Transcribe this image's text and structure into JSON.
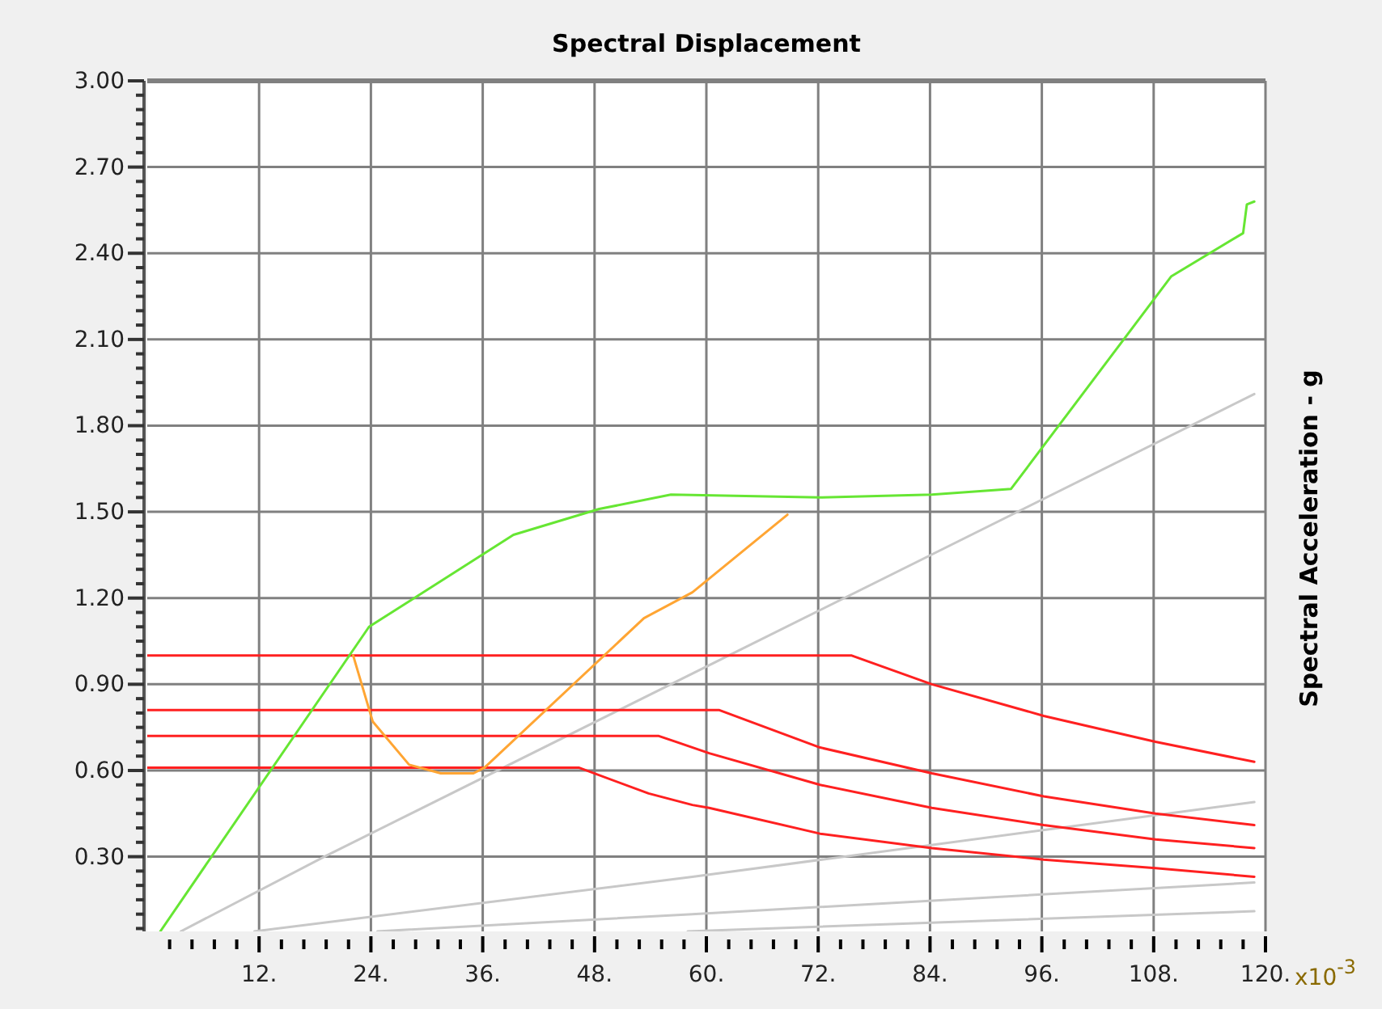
{
  "chart_data": {
    "type": "line",
    "title": "Spectral Displacement",
    "xlabel": "x10$^{-3}$",
    "ylabel": "Spectral Acceleration - g",
    "xlim": [
      0,
      120
    ],
    "ylim": [
      0.04,
      3.0
    ],
    "xticks": [
      {
        "value": 2.4,
        "label": null
      },
      {
        "value": 4.8,
        "label": null
      },
      {
        "value": 7.2,
        "label": null
      },
      {
        "value": 9.6,
        "label": null
      },
      {
        "value": 12,
        "label": "12."
      },
      {
        "value": 14.4,
        "label": null
      },
      {
        "value": 16.8,
        "label": null
      },
      {
        "value": 19.2,
        "label": null
      },
      {
        "value": 21.6,
        "label": null
      },
      {
        "value": 24,
        "label": "24."
      },
      {
        "value": 26.4,
        "label": null
      },
      {
        "value": 28.8,
        "label": null
      },
      {
        "value": 31.2,
        "label": null
      },
      {
        "value": 33.6,
        "label": null
      },
      {
        "value": 36,
        "label": "36."
      },
      {
        "value": 38.4,
        "label": null
      },
      {
        "value": 40.8,
        "label": null
      },
      {
        "value": 43.2,
        "label": null
      },
      {
        "value": 45.6,
        "label": null
      },
      {
        "value": 48,
        "label": "48."
      },
      {
        "value": 50.4,
        "label": null
      },
      {
        "value": 52.8,
        "label": null
      },
      {
        "value": 55.2,
        "label": null
      },
      {
        "value": 57.6,
        "label": null
      },
      {
        "value": 60,
        "label": "60."
      },
      {
        "value": 62.4,
        "label": null
      },
      {
        "value": 64.8,
        "label": null
      },
      {
        "value": 67.2,
        "label": null
      },
      {
        "value": 69.6,
        "label": null
      },
      {
        "value": 72,
        "label": "72."
      },
      {
        "value": 74.4,
        "label": null
      },
      {
        "value": 76.8,
        "label": null
      },
      {
        "value": 79.2,
        "label": null
      },
      {
        "value": 81.6,
        "label": null
      },
      {
        "value": 84,
        "label": "84."
      },
      {
        "value": 86.4,
        "label": null
      },
      {
        "value": 88.8,
        "label": null
      },
      {
        "value": 91.2,
        "label": null
      },
      {
        "value": 93.6,
        "label": null
      },
      {
        "value": 96,
        "label": "96."
      },
      {
        "value": 98.4,
        "label": null
      },
      {
        "value": 100.8,
        "label": null
      },
      {
        "value": 103.2,
        "label": null
      },
      {
        "value": 105.6,
        "label": null
      },
      {
        "value": 108,
        "label": "108."
      },
      {
        "value": 110.4,
        "label": null
      },
      {
        "value": 112.8,
        "label": null
      },
      {
        "value": 115.2,
        "label": null
      },
      {
        "value": 117.6,
        "label": null
      },
      {
        "value": 120,
        "label": "120."
      }
    ],
    "yticks": [
      {
        "value": 0.05,
        "label": null
      },
      {
        "value": 0.1,
        "label": null
      },
      {
        "value": 0.15,
        "label": null
      },
      {
        "value": 0.2,
        "label": null
      },
      {
        "value": 0.25,
        "label": null
      },
      {
        "value": 0.3,
        "label": "0.30"
      },
      {
        "value": 0.35,
        "label": null
      },
      {
        "value": 0.4,
        "label": null
      },
      {
        "value": 0.45,
        "label": null
      },
      {
        "value": 0.5,
        "label": null
      },
      {
        "value": 0.55,
        "label": null
      },
      {
        "value": 0.6,
        "label": "0.60"
      },
      {
        "value": 0.65,
        "label": null
      },
      {
        "value": 0.7,
        "label": null
      },
      {
        "value": 0.75,
        "label": null
      },
      {
        "value": 0.8,
        "label": null
      },
      {
        "value": 0.85,
        "label": null
      },
      {
        "value": 0.9,
        "label": "0.90"
      },
      {
        "value": 0.95,
        "label": null
      },
      {
        "value": 1.0,
        "label": null
      },
      {
        "value": 1.05,
        "label": null
      },
      {
        "value": 1.1,
        "label": null
      },
      {
        "value": 1.15,
        "label": null
      },
      {
        "value": 1.2,
        "label": "1.20"
      },
      {
        "value": 1.25,
        "label": null
      },
      {
        "value": 1.3,
        "label": null
      },
      {
        "value": 1.35,
        "label": null
      },
      {
        "value": 1.4,
        "label": null
      },
      {
        "value": 1.45,
        "label": null
      },
      {
        "value": 1.5,
        "label": "1.50"
      },
      {
        "value": 1.55,
        "label": null
      },
      {
        "value": 1.6,
        "label": null
      },
      {
        "value": 1.65,
        "label": null
      },
      {
        "value": 1.7,
        "label": null
      },
      {
        "value": 1.75,
        "label": null
      },
      {
        "value": 1.8,
        "label": "1.80"
      },
      {
        "value": 1.85,
        "label": null
      },
      {
        "value": 1.9,
        "label": null
      },
      {
        "value": 1.95,
        "label": null
      },
      {
        "value": 2.0,
        "label": null
      },
      {
        "value": 2.05,
        "label": null
      },
      {
        "value": 2.1,
        "label": "2.10"
      },
      {
        "value": 2.15,
        "label": null
      },
      {
        "value": 2.2,
        "label": null
      },
      {
        "value": 2.25,
        "label": null
      },
      {
        "value": 2.3,
        "label": null
      },
      {
        "value": 2.35,
        "label": null
      },
      {
        "value": 2.4,
        "label": "2.40"
      },
      {
        "value": 2.45,
        "label": null
      },
      {
        "value": 2.5,
        "label": null
      },
      {
        "value": 2.55,
        "label": null
      },
      {
        "value": 2.6,
        "label": null
      },
      {
        "value": 2.65,
        "label": null
      },
      {
        "value": 2.7,
        "label": "2.70"
      },
      {
        "value": 2.75,
        "label": null
      },
      {
        "value": 2.8,
        "label": null
      },
      {
        "value": 2.85,
        "label": null
      },
      {
        "value": 2.9,
        "label": null
      },
      {
        "value": 2.95,
        "label": null
      },
      {
        "value": 3.0,
        "label": "3.00"
      }
    ],
    "grid": true,
    "series": [
      {
        "color": "#c8c8c8",
        "x": [
          3.6,
          19.0,
          118.8
        ],
        "values": [
          0.04,
          0.3,
          1.91
        ]
      },
      {
        "color": "#c8c8c8",
        "x": [
          11.5,
          58.5,
          118.8
        ],
        "values": [
          0.04,
          0.23,
          0.49
        ]
      },
      {
        "color": "#c8c8c8",
        "x": [
          24.7,
          58.5,
          118.8
        ],
        "values": [
          0.04,
          0.1,
          0.21
        ]
      },
      {
        "color": "#c8c8c8",
        "x": [
          58,
          118.8
        ],
        "values": [
          0.04,
          0.11
        ]
      },
      {
        "color": "#ff2020",
        "x": [
          0,
          75.6,
          84.2,
          96.2,
          108.2,
          118.8
        ],
        "values": [
          1.0,
          1.0,
          0.9,
          0.79,
          0.7,
          0.63
        ]
      },
      {
        "color": "#ff2020",
        "x": [
          0,
          61.4,
          72.2,
          84.2,
          96.2,
          108.2,
          118.8
        ],
        "values": [
          0.81,
          0.81,
          0.68,
          0.59,
          0.51,
          0.45,
          0.41
        ]
      },
      {
        "color": "#ff2020",
        "x": [
          0,
          54.9,
          56.7,
          60.3,
          72.2,
          84.2,
          96.2,
          108.2,
          118.8
        ],
        "values": [
          0.72,
          0.72,
          0.7,
          0.66,
          0.55,
          0.47,
          0.41,
          0.36,
          0.33
        ]
      },
      {
        "color": "#ff2020",
        "x": [
          0,
          46.3,
          53.8,
          58.5,
          60.3,
          72.2,
          84.2,
          96.2,
          108.2,
          118.8
        ],
        "values": [
          0.61,
          0.61,
          0.52,
          0.48,
          0.47,
          0.38,
          0.33,
          0.29,
          0.26,
          0.23
        ]
      },
      {
        "color": "#ffa533",
        "x": [
          22.1,
          24.2,
          28.1,
          31.5,
          35.0,
          36.2,
          53.3,
          58.5,
          68.7
        ],
        "values": [
          1.0,
          0.77,
          0.62,
          0.59,
          0.59,
          0.61,
          1.13,
          1.22,
          1.49
        ]
      },
      {
        "color": "#66e633",
        "x": [
          1.4,
          23.8,
          39.3,
          48.5,
          56.2,
          72.2,
          84.2,
          92.7,
          109.9,
          117.6,
          118.0,
          118.8
        ],
        "values": [
          0.04,
          1.1,
          1.42,
          1.51,
          1.56,
          1.55,
          1.56,
          1.58,
          2.32,
          2.47,
          2.57,
          2.58
        ]
      }
    ]
  }
}
